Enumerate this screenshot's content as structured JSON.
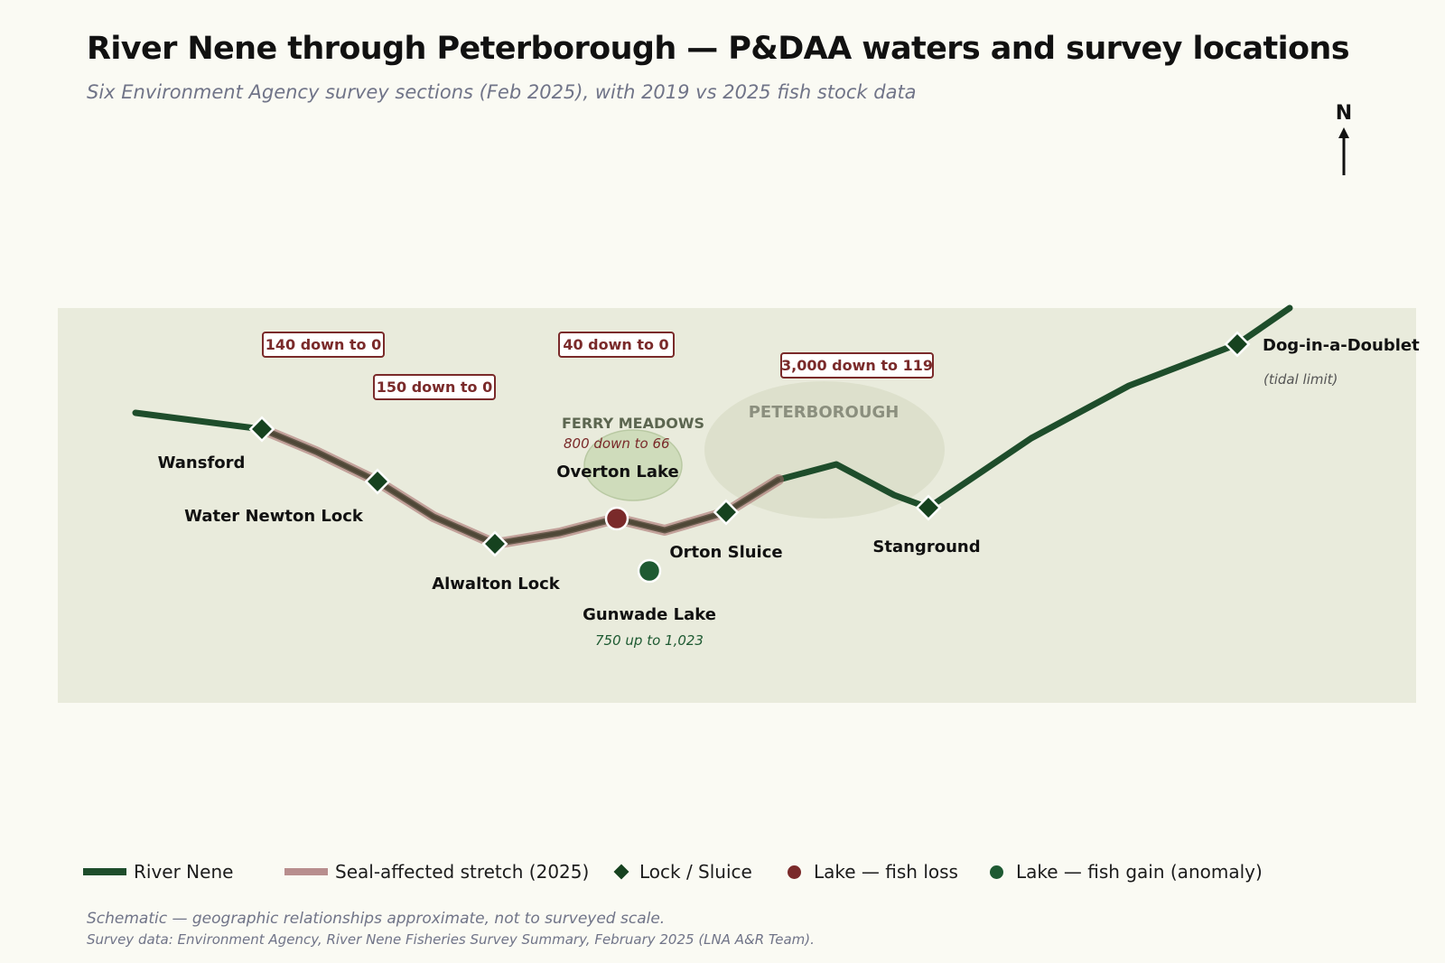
{
  "title": "River Nene through Peterborough — P&DAA waters and survey locations",
  "subtitle": "Six Environment Agency survey sections (Feb 2025), with 2019 vs 2025 fish stock data",
  "north_arrow": {
    "label": "N",
    "icon": "north-arrow-icon"
  },
  "map": {
    "locks": {
      "wansford": "Wansford",
      "water_newton": "Water Newton Lock",
      "alwalton": "Alwalton Lock",
      "orton": "Orton Sluice",
      "stanground": "Stanground",
      "dog": "Dog-in-a-Doublet",
      "dog_note": "(tidal limit)"
    },
    "lakes": {
      "overton": "Overton Lake",
      "gunwade": "Gunwade Lake",
      "gunwade_change": "750 up to 1,023"
    },
    "areas": {
      "ferry_meadows": "FERRY MEADOWS",
      "ferry_change": "800 down to 66",
      "peterborough": "PETERBOROUGH"
    },
    "callouts": {
      "c1": "140 down to 0",
      "c2": "150 down to 0",
      "c3": "40 down to 0",
      "c4": "3,000 down to 119"
    }
  },
  "legend": {
    "river": "River Nene",
    "seal": "Seal-affected stretch (2025)",
    "lock": "Lock / Sluice",
    "loss": "Lake — fish loss",
    "gain": "Lake — fish gain (anomaly)"
  },
  "colors": {
    "river": "#1e4d2b",
    "seal": "#b88e8e",
    "lock": "#16421f",
    "loss": "#7a2a2a",
    "gain": "#1e5a32",
    "map_bg": "#e9ebdc",
    "page_bg": "#fafaf3"
  },
  "note1": "Schematic — geographic relationships approximate, not to surveyed scale.",
  "note2": "Survey data: Environment Agency, River Nene Fisheries Survey Summary, February 2025 (LNA A&R Team)."
}
